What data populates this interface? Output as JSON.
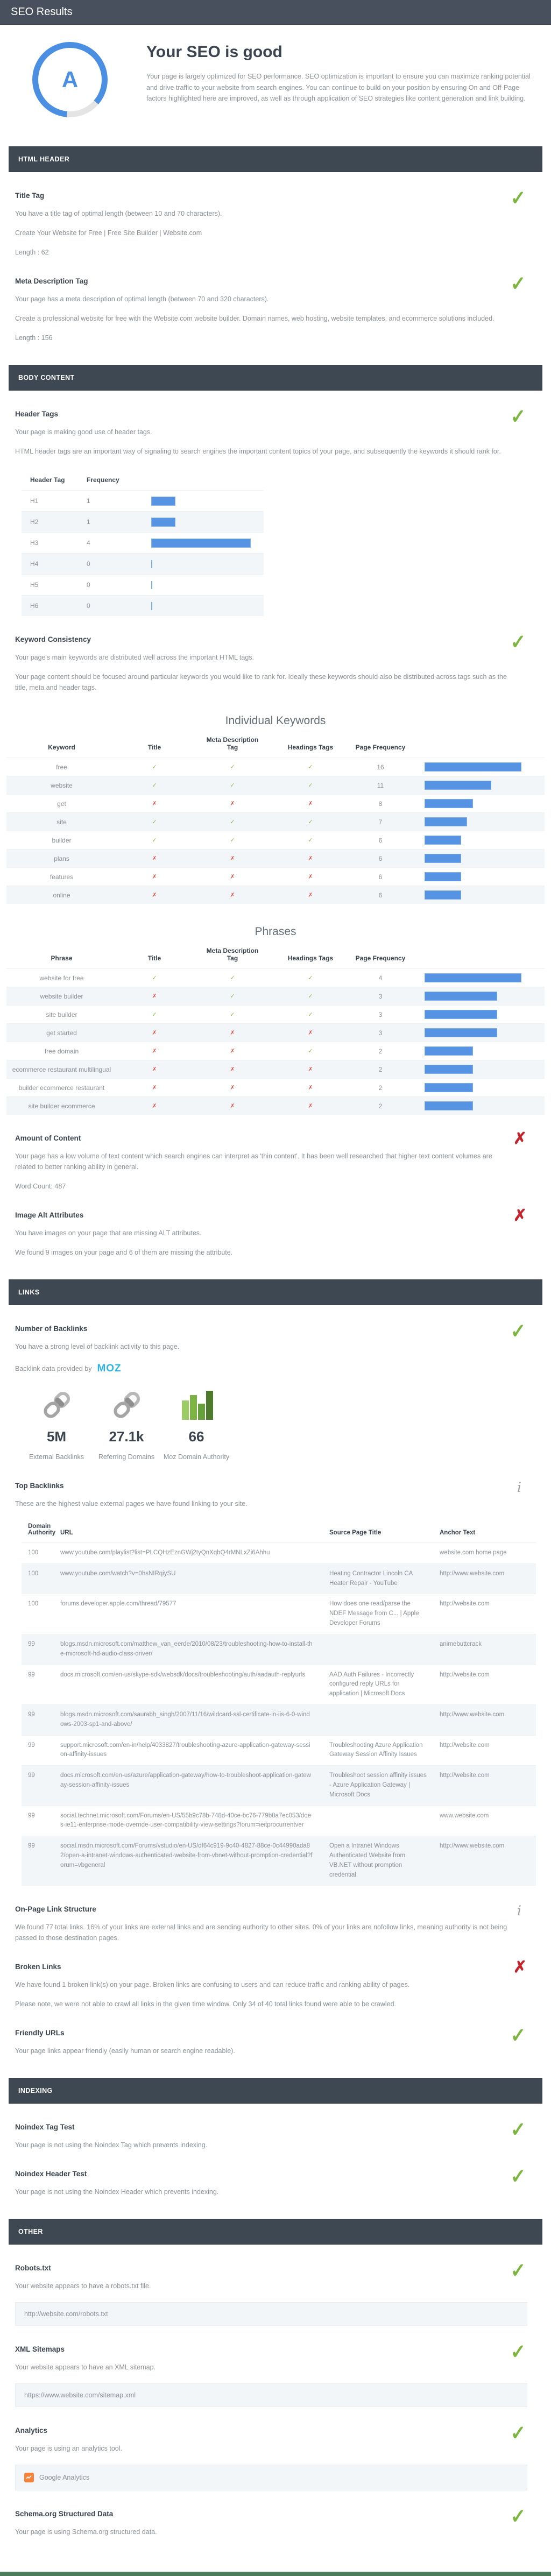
{
  "icons": {
    "pass": "✓",
    "fail": "✗",
    "info": "i",
    "check_small": "✓",
    "cross_small": "✗"
  },
  "colors": {
    "accent_blue": "#4a8fe2",
    "bar_blue": "#5793e3",
    "pass_green": "#7cb63e",
    "fail_red": "#c5232b",
    "section_bar": "#3e4853",
    "moz_blue": "#2bb3e6",
    "ga_orange": "#f5833c",
    "footer_green": "#4d7c5a"
  },
  "topbar": {
    "title": "SEO Results"
  },
  "summary": {
    "grade": "A",
    "heading": "Your SEO is good",
    "description": "Your page is largely optimized for SEO performance. SEO optimization is important to ensure you can maximize ranking potential and drive traffic to your website from search engines. You can continue to build on your position by ensuring On and Off-Page factors highlighted here are improved, as well as through application of SEO strategies like content generation and link building."
  },
  "html_header": {
    "bar": "HTML HEADER",
    "title_tag": {
      "heading": "Title Tag",
      "text": "You have a title tag of optimal length (between 10 and 70 characters).",
      "value": "Create Your Website for Free | Free Site Builder | Website.com",
      "length": "Length : 62"
    },
    "meta_description": {
      "heading": "Meta Description Tag",
      "text": "Your page has a meta description of optimal length (between 70 and 320 characters).",
      "value": "Create a professional website for free with the Website.com website builder. Domain names, web hosting, website templates, and ecommerce solutions included.",
      "length": "Length : 156"
    }
  },
  "body_content": {
    "bar": "BODY CONTENT",
    "header_tags": {
      "heading": "Header Tags",
      "text1": "Your page is making good use of header tags.",
      "text2": "HTML header tags are an important way of signaling to search engines the important content topics of your page, and subsequently the keywords it should rank for.",
      "col1": "Header Tag",
      "col2": "Frequency",
      "rows": [
        {
          "tag": "H1",
          "freq": "1",
          "bar": 45
        },
        {
          "tag": "H2",
          "freq": "1",
          "bar": 45
        },
        {
          "tag": "H3",
          "freq": "4",
          "bar": 185
        },
        {
          "tag": "H4",
          "freq": "0",
          "bar": 2
        },
        {
          "tag": "H5",
          "freq": "0",
          "bar": 2
        },
        {
          "tag": "H6",
          "freq": "0",
          "bar": 2
        }
      ]
    },
    "keyword_consistency": {
      "heading": "Keyword Consistency",
      "text1": "Your page's main keywords are distributed well across the important HTML tags.",
      "text2": "Your page content should be focused around particular keywords you would like to rank for. Ideally these keywords should also be distributed across tags such as the title, meta and header tags.",
      "individual_title": "Individual Keywords",
      "kw_col_label": "Keyword",
      "ph_col_label": "Phrase",
      "col_title": "Title",
      "col_meta": "Meta Description Tag",
      "col_headings": "Headings Tags",
      "col_freq": "Page Frequency",
      "keywords": [
        {
          "label": "free",
          "title": true,
          "meta": true,
          "headings": true,
          "freq": "16",
          "bar": 180
        },
        {
          "label": "website",
          "title": true,
          "meta": true,
          "headings": true,
          "freq": "11",
          "bar": 124
        },
        {
          "label": "get",
          "title": false,
          "meta": false,
          "headings": false,
          "freq": "8",
          "bar": 90
        },
        {
          "label": "site",
          "title": true,
          "meta": true,
          "headings": true,
          "freq": "7",
          "bar": 79
        },
        {
          "label": "builder",
          "title": true,
          "meta": true,
          "headings": true,
          "freq": "6",
          "bar": 68
        },
        {
          "label": "plans",
          "title": false,
          "meta": false,
          "headings": false,
          "freq": "6",
          "bar": 68
        },
        {
          "label": "features",
          "title": false,
          "meta": false,
          "headings": false,
          "freq": "6",
          "bar": 68
        },
        {
          "label": "online",
          "title": false,
          "meta": false,
          "headings": false,
          "freq": "6",
          "bar": 68
        }
      ],
      "phrases_title": "Phrases",
      "phrases": [
        {
          "label": "website for free",
          "title": true,
          "meta": true,
          "headings": true,
          "freq": "4",
          "bar": 180
        },
        {
          "label": "website builder",
          "title": false,
          "meta": true,
          "headings": true,
          "freq": "3",
          "bar": 135
        },
        {
          "label": "site builder",
          "title": true,
          "meta": true,
          "headings": true,
          "freq": "3",
          "bar": 135
        },
        {
          "label": "get started",
          "title": false,
          "meta": false,
          "headings": false,
          "freq": "3",
          "bar": 135
        },
        {
          "label": "free domain",
          "title": false,
          "meta": false,
          "headings": true,
          "freq": "2",
          "bar": 90
        },
        {
          "label": "ecommerce restaurant multilingual",
          "title": false,
          "meta": false,
          "headings": false,
          "freq": "2",
          "bar": 90
        },
        {
          "label": "builder ecommerce restaurant",
          "title": false,
          "meta": false,
          "headings": false,
          "freq": "2",
          "bar": 90
        },
        {
          "label": "site builder ecommerce",
          "title": false,
          "meta": false,
          "headings": false,
          "freq": "2",
          "bar": 90
        }
      ]
    },
    "amount_of_content": {
      "heading": "Amount of Content",
      "text": "Your page has a low volume of text content which search engines can interpret as 'thin content'. It has been well researched that higher text content volumes are related to better ranking ability in general.",
      "word_count": "Word Count: 487"
    },
    "image_alt": {
      "heading": "Image Alt Attributes",
      "text1": "You have images on your page that are missing ALT attributes.",
      "text2": "We found 9 images on your page and 6 of them are missing the attribute."
    }
  },
  "links": {
    "bar": "LINKS",
    "backlinks": {
      "heading": "Number of Backlinks",
      "text": "You have a strong level of backlink activity to this page.",
      "provider_text": "Backlink data provided by",
      "provider_logo": "MOZ",
      "stats": [
        {
          "icon": "link-chain-icon",
          "value": "5M",
          "label": "External Backlinks"
        },
        {
          "icon": "link-chain-icon",
          "value": "27.1k",
          "label": "Referring Domains"
        },
        {
          "icon": "bar-chart-icon",
          "value": "66",
          "label": "Moz Domain Authority"
        }
      ]
    },
    "top_backlinks": {
      "heading": "Top Backlinks",
      "text": "These are the highest value external pages we have found linking to your site.",
      "col_da": "Domain Authority",
      "col_url": "URL",
      "col_source": "Source Page Title",
      "col_anchor": "Anchor Text",
      "rows": [
        {
          "da": "100",
          "url": "www.youtube.com/playlist?list=PLCQHzEznGWj2tyQnXqbQ4rMNLxZi6Ahhu",
          "source": "",
          "anchor": "website.com home page"
        },
        {
          "da": "100",
          "url": "www.youtube.com/watch?v=0hsNIRqiySU",
          "source": "Heating Contractor Lincoln CA Heater Repair - YouTube",
          "anchor": "http://www.website.com"
        },
        {
          "da": "100",
          "url": "forums.developer.apple.com/thread/79577",
          "source": "How does one read/parse the NDEF Message from C... | Apple Developer Forums",
          "anchor": "http://website.com"
        },
        {
          "da": "99",
          "url": "blogs.msdn.microsoft.com/matthew_van_eerde/2010/08/23/troubleshooting-how-to-install-the-microsoft-hd-audio-class-driver/",
          "source": "",
          "anchor": "animebuttcrack"
        },
        {
          "da": "99",
          "url": "docs.microsoft.com/en-us/skype-sdk/websdk/docs/troubleshooting/auth/aadauth-replyurls",
          "source": "AAD Auth Failures - Incorrectly configured reply URLs for application | Microsoft Docs",
          "anchor": "http://website.com"
        },
        {
          "da": "99",
          "url": "blogs.msdn.microsoft.com/saurabh_singh/2007/11/16/wildcard-ssl-certificate-in-iis-6-0-windows-2003-sp1-and-above/",
          "source": "",
          "anchor": "http://www.website.com"
        },
        {
          "da": "99",
          "url": "support.microsoft.com/en-in/help/4033827/troubleshooting-azure-application-gateway-session-affinity-issues",
          "source": "Troubleshooting Azure Application Gateway Session Affinity Issues",
          "anchor": "http://website.com"
        },
        {
          "da": "99",
          "url": "docs.microsoft.com/en-us/azure/application-gateway/how-to-troubleshoot-application-gateway-session-affinity-issues",
          "source": "Troubleshoot session affinity issues - Azure Application Gateway | Microsoft Docs",
          "anchor": "http://website.com"
        },
        {
          "da": "99",
          "url": "social.technet.microsoft.com/Forums/en-US/55b9c78b-748d-40ce-bc76-779b8a7ec053/does-ie11-enterprise-mode-override-user-compatibility-view-settings?forum=ieitprocurrentver",
          "source": "",
          "anchor": "www.website.com"
        },
        {
          "da": "99",
          "url": "social.msdn.microsoft.com/Forums/vstudio/en-US/df64c919-9c40-4827-88ce-0c44990ada82/open-a-intranet-windows-authenticated-website-from-vbnet-without-promption-credential?forum=vbgeneral",
          "source": "Open a Intranet Windows Authenticated Website from VB.NET without promption credential.",
          "anchor": "http://www.website.com"
        }
      ]
    },
    "on_page": {
      "heading": "On-Page Link Structure",
      "text": "We found 77 total links. 16% of your links are external links and are sending authority to other sites. 0% of your links are nofollow links, meaning authority is not being passed to those destination pages."
    },
    "broken": {
      "heading": "Broken Links",
      "text1": "We have found 1 broken link(s) on your page. Broken links are confusing to users and can reduce traffic and ranking ability of pages.",
      "text2": "Please note, we were not able to crawl all links in the given time window. Only 34 of 40 total links found were able to be crawled."
    },
    "friendly": {
      "heading": "Friendly URLs",
      "text": "Your page links appear friendly (easily human or search engine readable)."
    }
  },
  "indexing": {
    "bar": "INDEXING",
    "noindex_tag": {
      "heading": "Noindex Tag Test",
      "text": "Your page is not using the Noindex Tag which prevents indexing."
    },
    "noindex_header": {
      "heading": "Noindex Header Test",
      "text": "Your page is not using the Noindex Header which prevents indexing."
    }
  },
  "other": {
    "bar": "OTHER",
    "robots": {
      "heading": "Robots.txt",
      "text": "Your website appears to have a robots.txt file.",
      "url": "http://website.com/robots.txt"
    },
    "sitemap": {
      "heading": "XML Sitemaps",
      "text": "Your website appears to have an XML sitemap.",
      "url": "https://www.website.com/sitemap.xml"
    },
    "analytics": {
      "heading": "Analytics",
      "text": "Your page is using an analytics tool.",
      "tool": "Google Analytics"
    },
    "schema": {
      "heading": "Schema.org Structured Data",
      "text": "Your page is using Schema.org structured data."
    }
  }
}
